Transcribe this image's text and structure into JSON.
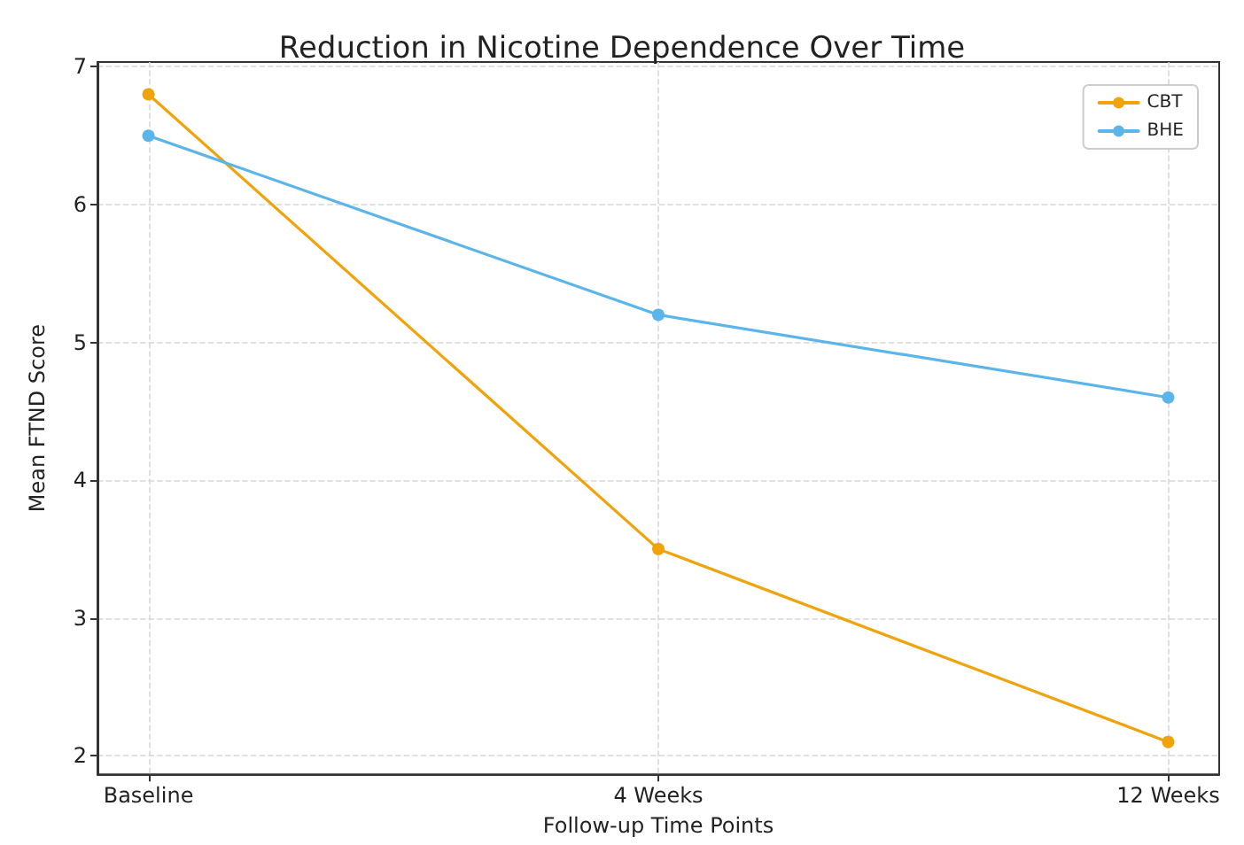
{
  "chart_data": {
    "type": "line",
    "title": "Reduction in Nicotine Dependence Over Time",
    "xlabel": "Follow-up Time Points",
    "ylabel": "Mean FTND Score",
    "categories": [
      "Baseline",
      "4 Weeks",
      "12 Weeks"
    ],
    "series": [
      {
        "name": "CBT",
        "color": "#f0a30a",
        "values": [
          6.8,
          3.5,
          2.1
        ]
      },
      {
        "name": "BHE",
        "color": "#5bb5ea",
        "values": [
          6.5,
          5.2,
          4.6
        ]
      }
    ],
    "ylim": [
      1.865,
      7.035
    ],
    "yticks": [
      2,
      3,
      4,
      5,
      6,
      7
    ],
    "grid": true,
    "legend": "top right",
    "marker": "circle",
    "line_style": "solid"
  }
}
